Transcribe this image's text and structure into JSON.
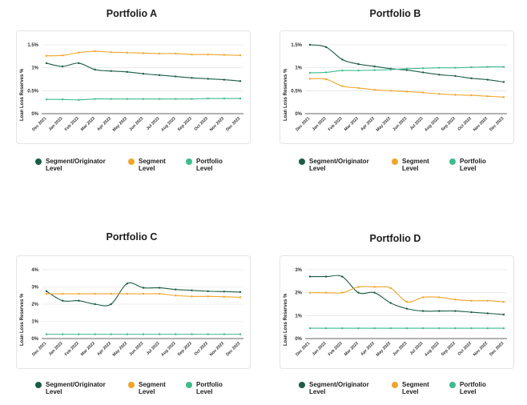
{
  "colors": {
    "seg_orig": "#1b5c45",
    "segment": "#f0a52a",
    "portfolio": "#3ebb8c",
    "grid": "#dedede",
    "axis": "#333333"
  },
  "legend": {
    "seg_orig": "Segment/Originator Level",
    "segment": "Segment Level",
    "portfolio": "Portfolio Level"
  },
  "ylabel": "Loan Loss Reserves %",
  "chart_data": [
    {
      "type": "line",
      "title": "Portfolio A",
      "ylabel": "Loan Loss Reserves %",
      "categories": [
        "Dec 2021",
        "Jan 2022",
        "Feb 2022",
        "Mar 2022",
        "Apr 2022",
        "May 2022",
        "Jun 2022",
        "Jul 2022",
        "Aug 2022",
        "Sep 2022",
        "Oct 2022",
        "Nov 2022",
        "Dec 2022"
      ],
      "yticks": [
        0,
        0.5,
        1,
        1.5
      ],
      "yticklabels": [
        "0%",
        "0.5%",
        "1%",
        "1.5%"
      ],
      "ylim": [
        0,
        1.5
      ],
      "series": [
        {
          "name": "Segment/Originator Level",
          "key": "seg_orig",
          "values": [
            1.1,
            1.03,
            1.1,
            0.96,
            0.93,
            0.91,
            0.87,
            0.84,
            0.81,
            0.78,
            0.76,
            0.74,
            0.71
          ]
        },
        {
          "name": "Segment Level",
          "key": "segment",
          "values": [
            1.26,
            1.27,
            1.33,
            1.36,
            1.34,
            1.33,
            1.32,
            1.31,
            1.31,
            1.29,
            1.29,
            1.28,
            1.27
          ]
        },
        {
          "name": "Portfolio Level",
          "key": "portfolio",
          "values": [
            0.31,
            0.31,
            0.3,
            0.32,
            0.32,
            0.32,
            0.32,
            0.32,
            0.32,
            0.32,
            0.33,
            0.33,
            0.33
          ]
        }
      ]
    },
    {
      "type": "line",
      "title": "Portfolio B",
      "ylabel": "Loan Loss Reserves %",
      "categories": [
        "Dec 2021",
        "Jan 2022",
        "Feb 2022",
        "Mar 2022",
        "Apr 2022",
        "May 2022",
        "Jun 2022",
        "Jul 2022",
        "Aug 2022",
        "Sep 2022",
        "Oct 2022",
        "Nov 2022",
        "Dec 2022"
      ],
      "yticks": [
        0,
        0.5,
        1,
        1.5
      ],
      "yticklabels": [
        "0%",
        "0.5%",
        "1%",
        "1.5%"
      ],
      "ylim": [
        0,
        1.5
      ],
      "series": [
        {
          "name": "Segment/Originator Level",
          "key": "seg_orig",
          "values": [
            1.5,
            1.45,
            1.18,
            1.08,
            1.03,
            0.98,
            0.95,
            0.9,
            0.85,
            0.82,
            0.77,
            0.74,
            0.69
          ]
        },
        {
          "name": "Segment Level",
          "key": "segment",
          "values": [
            0.76,
            0.75,
            0.6,
            0.56,
            0.52,
            0.5,
            0.48,
            0.46,
            0.43,
            0.41,
            0.4,
            0.38,
            0.36
          ]
        },
        {
          "name": "Portfolio Level",
          "key": "portfolio",
          "values": [
            0.89,
            0.9,
            0.94,
            0.94,
            0.95,
            0.96,
            0.98,
            0.99,
            1.0,
            1.0,
            1.01,
            1.02,
            1.02
          ]
        }
      ]
    },
    {
      "type": "line",
      "title": "Portfolio C",
      "ylabel": "Loan Loss Reserves %",
      "categories": [
        "Dec 2021",
        "Jan 2022",
        "Feb 2022",
        "Mar 2022",
        "Apr 2022",
        "May 2022",
        "Jun 2022",
        "Jul 2022",
        "Aug 2022",
        "Sep 2022",
        "Oct 2022",
        "Nov 2022",
        "Dec 2022"
      ],
      "yticks": [
        0,
        1,
        2,
        3,
        4
      ],
      "yticklabels": [
        "0%",
        "1%",
        "2%",
        "3%",
        "4%"
      ],
      "ylim": [
        0,
        4
      ],
      "series": [
        {
          "name": "Segment/Originator Level",
          "key": "seg_orig",
          "values": [
            2.75,
            2.2,
            2.2,
            2.0,
            2.0,
            3.2,
            2.95,
            2.95,
            2.85,
            2.8,
            2.75,
            2.73,
            2.7
          ]
        },
        {
          "name": "Segment Level",
          "key": "segment",
          "values": [
            2.6,
            2.6,
            2.6,
            2.6,
            2.6,
            2.6,
            2.6,
            2.6,
            2.5,
            2.45,
            2.45,
            2.43,
            2.4
          ]
        },
        {
          "name": "Portfolio Level",
          "key": "portfolio",
          "values": [
            0.25,
            0.25,
            0.25,
            0.25,
            0.25,
            0.25,
            0.25,
            0.25,
            0.25,
            0.25,
            0.25,
            0.25,
            0.25
          ]
        }
      ]
    },
    {
      "type": "line",
      "title": "Portfolio D",
      "ylabel": "Loan Loss Reserves %",
      "categories": [
        "Dec 2021",
        "Jan 2022",
        "Feb 2022",
        "Mar 2022",
        "Apr 2022",
        "May 2022",
        "Jun 2022",
        "Jul 2022",
        "Aug 2022",
        "Sep 2022",
        "Oct 2022",
        "Nov 2022",
        "Dec 2022"
      ],
      "yticks": [
        0,
        1,
        2,
        3
      ],
      "yticklabels": [
        "0%",
        "1%",
        "2%",
        "3%"
      ],
      "ylim": [
        0,
        3
      ],
      "series": [
        {
          "name": "Segment/Originator Level",
          "key": "seg_orig",
          "values": [
            2.7,
            2.7,
            2.7,
            2.0,
            2.0,
            1.55,
            1.3,
            1.2,
            1.2,
            1.2,
            1.15,
            1.1,
            1.05
          ]
        },
        {
          "name": "Segment Level",
          "key": "segment",
          "values": [
            2.0,
            2.0,
            2.0,
            2.25,
            2.25,
            2.2,
            1.6,
            1.8,
            1.8,
            1.7,
            1.65,
            1.65,
            1.6
          ]
        },
        {
          "name": "Portfolio Level",
          "key": "portfolio",
          "values": [
            0.45,
            0.45,
            0.45,
            0.45,
            0.45,
            0.45,
            0.45,
            0.45,
            0.45,
            0.45,
            0.45,
            0.45,
            0.45
          ]
        }
      ]
    }
  ]
}
